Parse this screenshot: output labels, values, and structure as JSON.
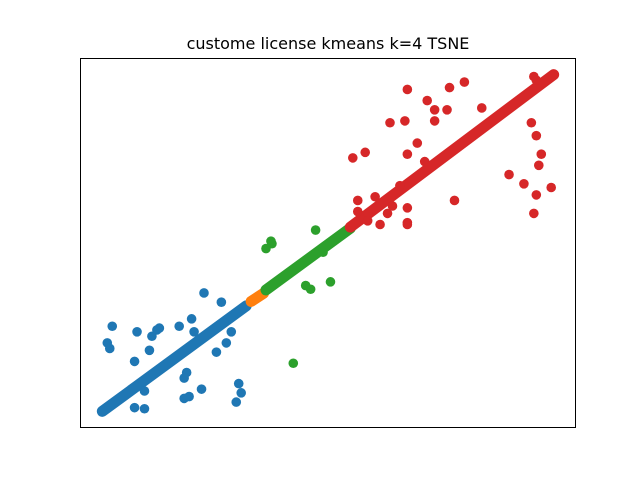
{
  "chart_data": {
    "type": "scatter",
    "title": "custome license kmeans k=4 TSNE",
    "xlabel": "",
    "ylabel": "",
    "xlim": [
      0,
      100
    ],
    "ylim": [
      0,
      100
    ],
    "ticks_visible": false,
    "grid": false,
    "legend": "none",
    "clusters": [
      {
        "color": "#1f77b4",
        "band": {
          "x_start": 4.5,
          "y_start": 4.5,
          "x_end": 33.5,
          "y_end": 33.0
        },
        "points": [
          [
            6,
            21.5
          ],
          [
            5.5,
            23
          ],
          [
            6.5,
            27.5
          ],
          [
            11.5,
            26
          ],
          [
            14,
            21
          ],
          [
            11,
            18
          ],
          [
            13,
            10
          ],
          [
            11,
            5.5
          ],
          [
            13,
            5.2
          ],
          [
            20,
            27.5
          ],
          [
            15.5,
            26.5
          ],
          [
            14.5,
            24.8
          ],
          [
            16,
            27
          ],
          [
            22.5,
            29.5
          ],
          [
            25,
            36.5
          ],
          [
            23,
            26
          ],
          [
            28.5,
            34
          ],
          [
            29,
            28.5
          ],
          [
            30.5,
            26
          ],
          [
            29.5,
            23
          ],
          [
            27.5,
            20.5
          ],
          [
            21.5,
            15
          ],
          [
            21,
            13.5
          ],
          [
            24.5,
            10.5
          ],
          [
            21,
            8
          ],
          [
            22,
            8.5
          ],
          [
            32,
            12
          ],
          [
            32.5,
            9.5
          ],
          [
            31.5,
            7
          ]
        ]
      },
      {
        "color": "#ff7f0e",
        "band": {
          "x_start": 34.5,
          "y_start": 34.2,
          "x_end": 37.0,
          "y_end": 36.4
        },
        "points": []
      },
      {
        "color": "#2ca02c",
        "band": {
          "x_start": 37.5,
          "y_start": 37.3,
          "x_end": 54.5,
          "y_end": 54.0
        },
        "points": [
          [
            37.5,
            48.5
          ],
          [
            38.5,
            50.5
          ],
          [
            38.7,
            49.8
          ],
          [
            47.5,
            53.5
          ],
          [
            49,
            47.5
          ],
          [
            45.5,
            38.5
          ],
          [
            46.5,
            37.5
          ],
          [
            50.5,
            39.5
          ],
          [
            43,
            17.5
          ]
        ]
      },
      {
        "color": "#d62728",
        "band": {
          "x_start": 54.5,
          "y_start": 54.3,
          "x_end": 95.5,
          "y_end": 95.5
        },
        "points": [
          [
            91.5,
            95
          ],
          [
            92,
            94
          ],
          [
            66,
            91.5
          ],
          [
            62.5,
            82.5
          ],
          [
            66,
            74
          ],
          [
            55,
            73
          ],
          [
            57.5,
            74.5
          ],
          [
            65.5,
            83
          ],
          [
            68,
            77
          ],
          [
            71.5,
            86
          ],
          [
            71.5,
            83
          ],
          [
            69.5,
            72
          ],
          [
            64.5,
            65.5
          ],
          [
            59.5,
            62.5
          ],
          [
            56,
            61.5
          ],
          [
            56,
            58.5
          ],
          [
            58,
            58
          ],
          [
            58,
            56
          ],
          [
            62,
            58
          ],
          [
            60.5,
            55
          ],
          [
            63,
            60
          ],
          [
            66,
            59.5
          ],
          [
            66,
            55.5
          ],
          [
            66,
            55
          ],
          [
            75.5,
            61.5
          ],
          [
            70,
            88.5
          ],
          [
            74,
            86
          ],
          [
            74.5,
            92
          ],
          [
            77.5,
            93.5
          ],
          [
            81,
            86.5
          ],
          [
            86.5,
            68.5
          ],
          [
            89.5,
            66
          ],
          [
            91.5,
            58
          ],
          [
            92,
            63
          ],
          [
            92.5,
            71
          ],
          [
            91,
            82.5
          ],
          [
            92,
            79
          ],
          [
            93,
            74
          ],
          [
            95,
            65
          ]
        ]
      }
    ]
  }
}
